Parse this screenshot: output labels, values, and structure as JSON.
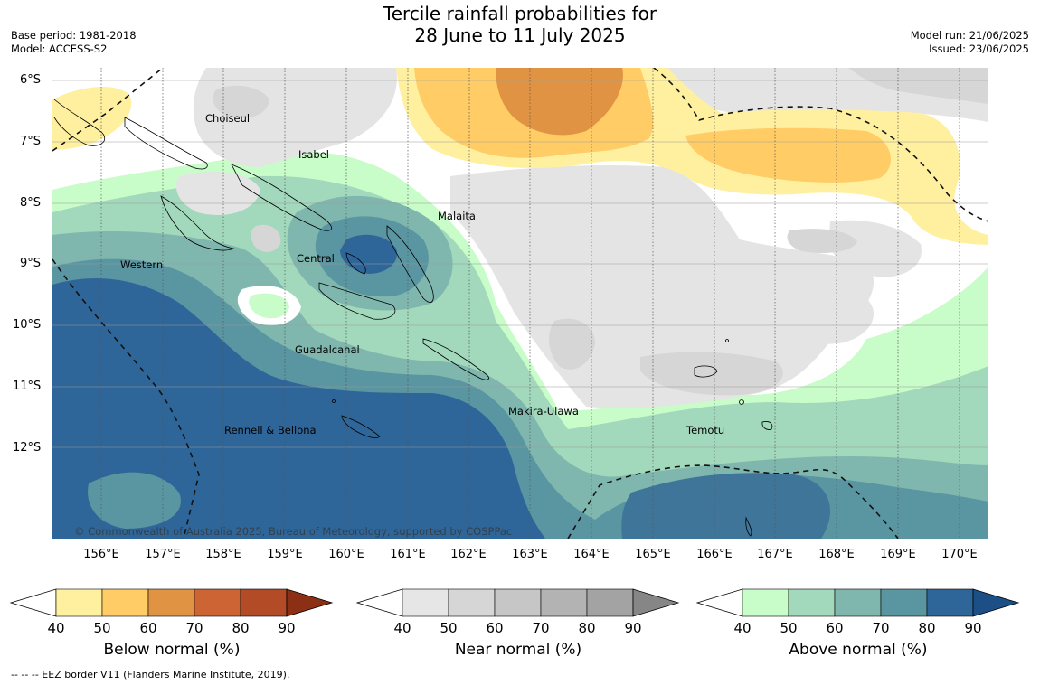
{
  "header": {
    "title_line1": "Tercile rainfall probabilities for",
    "title_line2": "28 June to 11 July 2025",
    "base_period": "Base period: 1981-2018",
    "model": "Model: ACCESS-S2",
    "model_run": "Model run: 21/06/2025",
    "issued": "Issued: 23/06/2025"
  },
  "map": {
    "copyright": "© Commonwealth of Australia 2025, Bureau of Meteorology, supported by COSPPac",
    "lat_labels": [
      "6°S",
      "7°S",
      "8°S",
      "9°S",
      "10°S",
      "11°S",
      "12°S"
    ],
    "lon_labels": [
      "156°E",
      "157°E",
      "158°E",
      "159°E",
      "160°E",
      "161°E",
      "162°E",
      "163°E",
      "164°E",
      "165°E",
      "166°E",
      "167°E",
      "168°E",
      "169°E",
      "170°E"
    ],
    "places": {
      "choiseul": "Choiseul",
      "isabel": "Isabel",
      "malaita": "Malaita",
      "western": "Western",
      "central": "Central",
      "guadalcanal": "Guadalcanal",
      "makira": "Makira-Ulawa",
      "rennell": "Rennell & Bellona",
      "temotu": "Temotu"
    }
  },
  "colorbars": [
    {
      "title": "Below normal (%)",
      "ticks": [
        "40",
        "50",
        "60",
        "70",
        "80",
        "90"
      ],
      "colors": [
        "#fff0a0",
        "#ffcc66",
        "#e09443",
        "#cc6433",
        "#b24b26",
        "#8c3015"
      ]
    },
    {
      "title": "Near normal (%)",
      "ticks": [
        "40",
        "50",
        "60",
        "70",
        "80",
        "90"
      ],
      "colors": [
        "#e6e6e6",
        "#d6d6d6",
        "#c6c6c6",
        "#b3b3b3",
        "#a3a3a3",
        "#868686"
      ]
    },
    {
      "title": "Above normal (%)",
      "ticks": [
        "40",
        "50",
        "60",
        "70",
        "80",
        "90"
      ],
      "colors": [
        "#c8fcc8",
        "#a2d8bb",
        "#7fb7ae",
        "#5a95a2",
        "#2f6699",
        "#1b4f86"
      ]
    }
  ],
  "footer": "-- -- -- EEZ border V11 (Flanders Marine Institute, 2019)."
}
